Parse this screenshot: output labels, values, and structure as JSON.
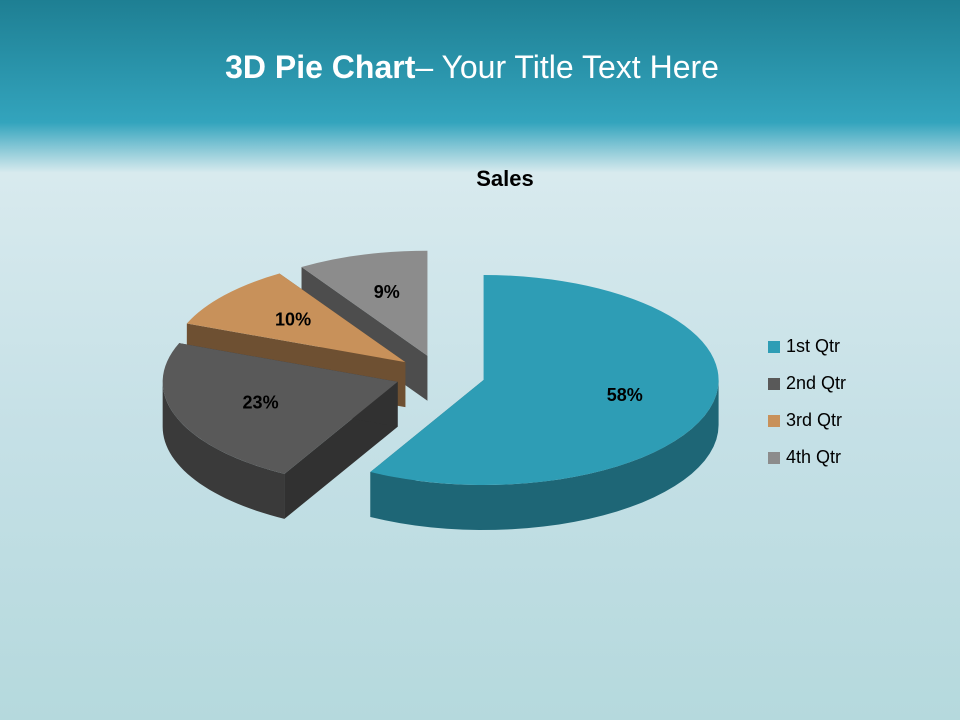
{
  "slide_title": {
    "bold": "3D Pie Chart",
    "rest": "– Your Title Text Here"
  },
  "chart_data": {
    "type": "pie",
    "title": "Sales",
    "categories": [
      "1st Qtr",
      "2nd Qtr",
      "3rd Qtr",
      "4th Qtr"
    ],
    "values": [
      58,
      23,
      10,
      9
    ],
    "value_labels": [
      "58%",
      "23%",
      "10%",
      "9%"
    ],
    "colors": [
      "#2e9db5",
      "#595959",
      "#c8915a",
      "#8c8c8c"
    ],
    "legend": "right"
  }
}
